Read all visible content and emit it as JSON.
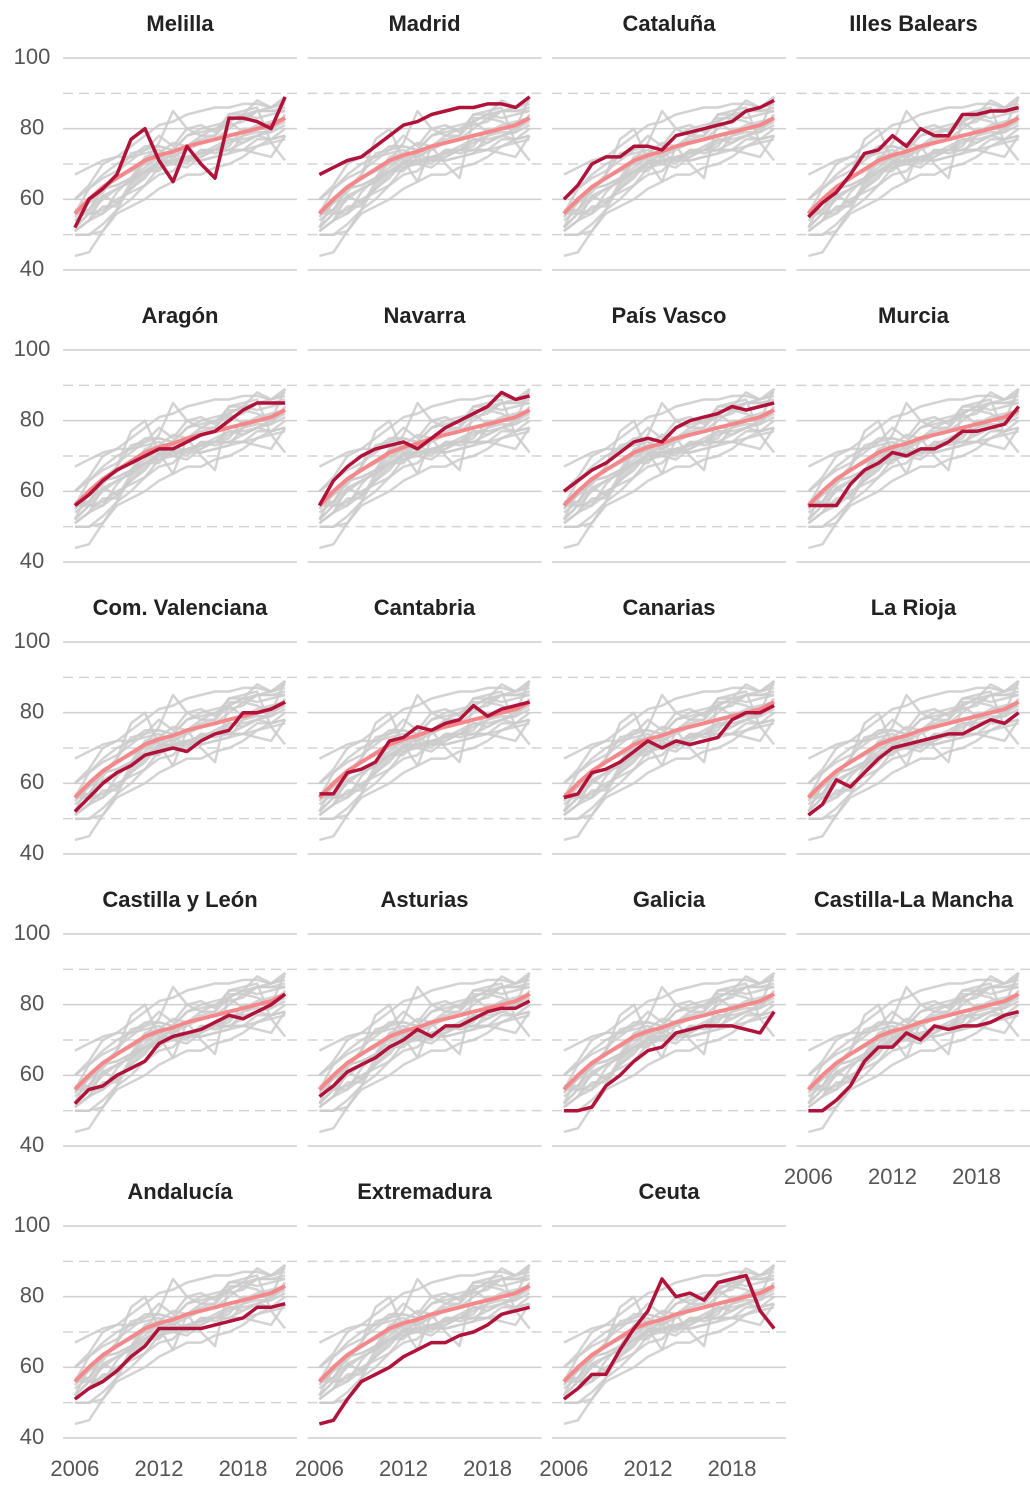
{
  "chart_data": {
    "type": "line",
    "facets": true,
    "x": [
      2006,
      2007,
      2008,
      2009,
      2010,
      2011,
      2012,
      2013,
      2014,
      2015,
      2016,
      2017,
      2018,
      2019,
      2020,
      2021
    ],
    "xlim": [
      2005.15,
      2021.85
    ],
    "xticks": [
      2006,
      2012,
      2018
    ],
    "ylim": [
      40,
      100
    ],
    "yticks": [
      40,
      60,
      80,
      100
    ],
    "minor_yticks": [
      50,
      70,
      90
    ],
    "grid": true,
    "background_color": "#cbcbcb",
    "average": {
      "color": "#f4878a",
      "values": [
        56,
        60,
        63.5,
        66,
        68.5,
        71,
        72.5,
        73.5,
        75,
        76,
        77,
        78,
        79,
        80,
        81,
        83
      ]
    },
    "series": [
      {
        "name": "Melilla",
        "color": "#b0123a",
        "values": [
          52,
          60,
          63,
          67,
          77,
          80,
          71,
          65,
          75,
          70,
          66,
          83,
          83,
          82,
          80,
          89
        ]
      },
      {
        "name": "Madrid",
        "color": "#b0123a",
        "values": [
          67,
          69,
          71,
          72,
          75,
          78,
          81,
          82,
          84,
          85,
          86,
          86,
          87,
          87,
          86,
          89
        ]
      },
      {
        "name": "Cataluña",
        "color": "#b0123a",
        "values": [
          60,
          64,
          70,
          72,
          72,
          75,
          75,
          74,
          78,
          79,
          80,
          81,
          82,
          85,
          86,
          88
        ]
      },
      {
        "name": "Illes Balears",
        "color": "#b0123a",
        "values": [
          55,
          59,
          62,
          67,
          73,
          74,
          78,
          75,
          80,
          78,
          78,
          84,
          84,
          85,
          85,
          86
        ]
      },
      {
        "name": "Aragón",
        "color": "#b0123a",
        "values": [
          56,
          59,
          63,
          66,
          68,
          70,
          72,
          72,
          74,
          76,
          77,
          80,
          83,
          85,
          85,
          85
        ]
      },
      {
        "name": "Navarra",
        "color": "#b0123a",
        "values": [
          56,
          63,
          67,
          70,
          72,
          73,
          74,
          72,
          75,
          78,
          80,
          82,
          84,
          88,
          86,
          87
        ]
      },
      {
        "name": "País Vasco",
        "color": "#b0123a",
        "values": [
          60,
          63,
          66,
          68,
          71,
          74,
          75,
          74,
          78,
          80,
          81,
          82,
          84,
          83,
          84,
          85
        ]
      },
      {
        "name": "Murcia",
        "color": "#b0123a",
        "values": [
          56,
          56,
          56,
          62,
          66,
          68,
          71,
          70,
          72,
          72,
          74,
          77,
          77,
          78,
          79,
          84
        ]
      },
      {
        "name": "Com. Valenciana",
        "color": "#b0123a",
        "values": [
          52,
          56,
          60,
          63,
          65,
          68,
          69,
          70,
          69,
          72,
          74,
          75,
          80,
          80,
          81,
          83
        ]
      },
      {
        "name": "Cantabria",
        "color": "#b0123a",
        "values": [
          57,
          57,
          63,
          64,
          66,
          72,
          73,
          76,
          75,
          77,
          78,
          82,
          79,
          81,
          82,
          83
        ]
      },
      {
        "name": "Canarias",
        "color": "#b0123a",
        "values": [
          56,
          57,
          63,
          64,
          66,
          69,
          72,
          70,
          72,
          71,
          72,
          73,
          78,
          80,
          80,
          82
        ]
      },
      {
        "name": "La Rioja",
        "color": "#b0123a",
        "values": [
          51,
          54,
          61,
          59,
          63,
          67,
          70,
          71,
          72,
          73,
          74,
          74,
          76,
          78,
          77,
          80
        ]
      },
      {
        "name": "Castilla y León",
        "color": "#b0123a",
        "values": [
          52,
          56,
          57,
          60,
          62,
          64,
          69,
          71,
          72,
          73,
          75,
          77,
          76,
          78,
          80,
          83
        ]
      },
      {
        "name": "Asturias",
        "color": "#b0123a",
        "values": [
          54,
          57,
          61,
          63,
          65,
          68,
          70,
          73,
          71,
          74,
          74,
          76,
          78,
          79,
          79,
          81
        ]
      },
      {
        "name": "Galicia",
        "color": "#b0123a",
        "values": [
          50,
          50,
          51,
          57,
          60,
          64,
          67,
          68,
          72,
          73,
          74,
          74,
          74,
          73,
          72,
          78
        ]
      },
      {
        "name": "Castilla-La Mancha",
        "color": "#b0123a",
        "values": [
          50,
          50,
          53,
          57,
          64,
          68,
          68,
          72,
          70,
          74,
          73,
          74,
          74,
          75,
          77,
          78
        ]
      },
      {
        "name": "Andalucía",
        "color": "#b0123a",
        "values": [
          51,
          54,
          56,
          59,
          63,
          66,
          71,
          71,
          71,
          71,
          72,
          73,
          74,
          77,
          77,
          78
        ]
      },
      {
        "name": "Extremadura",
        "color": "#b0123a",
        "values": [
          44,
          45,
          51,
          56,
          58,
          60,
          63,
          65,
          67,
          67,
          69,
          70,
          72,
          75,
          76,
          77
        ]
      },
      {
        "name": "Ceuta",
        "color": "#b0123a",
        "values": [
          51,
          54,
          58,
          58,
          65,
          71,
          76,
          85,
          80,
          81,
          79,
          84,
          85,
          86,
          76,
          71
        ]
      }
    ]
  }
}
